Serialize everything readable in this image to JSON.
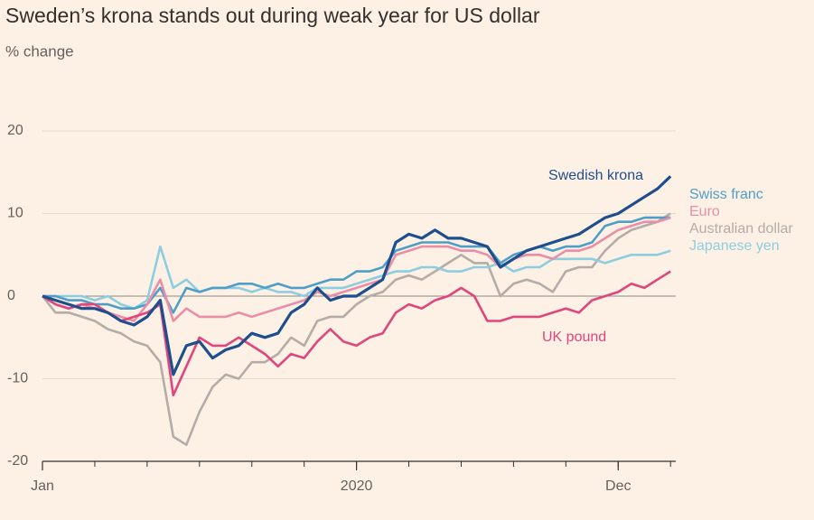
{
  "chart_data": {
    "type": "line",
    "title": "Sweden’s krona stands out during weak year for US dollar",
    "subtitle": "% change",
    "x": [
      0,
      0.25,
      0.5,
      0.75,
      1,
      1.25,
      1.5,
      1.75,
      2,
      2.25,
      2.5,
      2.75,
      3,
      3.25,
      3.5,
      3.75,
      4,
      4.25,
      4.5,
      4.75,
      5,
      5.25,
      5.5,
      5.75,
      6,
      6.25,
      6.5,
      6.75,
      7,
      7.25,
      7.5,
      7.75,
      8,
      8.25,
      8.5,
      8.75,
      9,
      9.25,
      9.5,
      9.75,
      10,
      10.25,
      10.5,
      10.75,
      11,
      11.25,
      11.5,
      11.75,
      12
    ],
    "xlim": [
      0,
      12.1
    ],
    "xticks": [
      {
        "value": 0,
        "label": "Jan"
      },
      {
        "value": 6,
        "label": "2020"
      },
      {
        "value": 11,
        "label": "Dec"
      }
    ],
    "ylim": [
      -20,
      20
    ],
    "yticks": [
      -20,
      -10,
      0,
      10,
      20
    ],
    "grid": true,
    "series": [
      {
        "name": "Swedish krona",
        "color": "#1f4e8c",
        "values": [
          0,
          -0.5,
          -1,
          -1.5,
          -1.5,
          -2,
          -3,
          -3.5,
          -2.5,
          -0.5,
          -9.5,
          -6,
          -5.5,
          -7.5,
          -6.5,
          -6,
          -4.5,
          -5,
          -4.5,
          -2,
          -1,
          1,
          -0.5,
          0,
          0,
          1,
          2,
          6.5,
          7.5,
          7,
          8,
          7,
          7,
          6.5,
          6,
          3.5,
          4.5,
          5.5,
          6,
          6.5,
          7,
          7.5,
          8.5,
          9.5,
          10,
          11,
          12,
          13,
          14.5
        ]
      },
      {
        "name": "Swiss franc",
        "color": "#4e9ec8",
        "values": [
          0,
          0,
          -0.5,
          -0.5,
          -1,
          -1,
          -1.5,
          -1.5,
          -1,
          1,
          -2,
          1,
          0.5,
          1,
          1,
          1.5,
          1.5,
          1,
          1.5,
          1,
          1,
          1.5,
          2,
          2,
          3,
          3,
          3.5,
          5.5,
          6,
          6.5,
          6.5,
          6.5,
          6,
          6,
          6,
          4,
          5,
          5.5,
          6,
          5.5,
          6,
          6,
          6.5,
          8.5,
          9,
          9,
          9.5,
          9.5,
          9.5
        ]
      },
      {
        "name": "Euro",
        "color": "#e98ea6",
        "values": [
          0,
          -1,
          -1.5,
          -1,
          -1.5,
          -2,
          -2.5,
          -3,
          -1,
          2,
          -3,
          -1.5,
          -2.5,
          -2.5,
          -2.5,
          -2,
          -2.5,
          -2,
          -1.5,
          -1,
          -0.5,
          0.5,
          0,
          0.5,
          1,
          1.5,
          2,
          5,
          5.5,
          6,
          6,
          6,
          5.5,
          5.5,
          5,
          3.5,
          4.5,
          5,
          5,
          4.5,
          5.5,
          5.5,
          6,
          7,
          8,
          8.5,
          9,
          9,
          9.5
        ]
      },
      {
        "name": "Australian dollar",
        "color": "#b3aca7",
        "values": [
          0,
          -2,
          -2,
          -2.5,
          -3,
          -4,
          -4.5,
          -5.5,
          -6,
          -8,
          -17,
          -18,
          -14,
          -11,
          -9.5,
          -10,
          -8,
          -8,
          -7,
          -5,
          -6,
          -3,
          -2.5,
          -2.5,
          -1,
          0,
          0.5,
          2,
          2.5,
          2,
          3,
          4,
          5,
          4,
          4,
          0,
          1.5,
          2,
          1.5,
          0.5,
          3,
          3.5,
          3.5,
          5.5,
          7,
          8,
          8.5,
          9,
          10
        ]
      },
      {
        "name": "Japanese yen",
        "color": "#8dcde0",
        "values": [
          0,
          0,
          0,
          0,
          -0.5,
          0,
          -1,
          -1.5,
          -0.5,
          6,
          1,
          2,
          0.5,
          1,
          1,
          1,
          0.5,
          1,
          0.5,
          0.5,
          0,
          1,
          1,
          1,
          1.5,
          2,
          2.5,
          3,
          3,
          3.5,
          3.5,
          3,
          3,
          3.5,
          3.5,
          4,
          3,
          3.5,
          3.5,
          4.5,
          4.5,
          4.5,
          4.5,
          4,
          4.5,
          5,
          5,
          5,
          5.5
        ]
      },
      {
        "name": "UK pound",
        "color": "#e0457b",
        "values": [
          0,
          -1,
          -1.5,
          -1,
          -1,
          -2,
          -3,
          -2.5,
          -2,
          -1,
          -12,
          -8.5,
          -5,
          -6,
          -6,
          -5,
          -6,
          -7,
          -8.5,
          -7,
          -7.5,
          -5.5,
          -4,
          -5.5,
          -6,
          -5,
          -4.5,
          -2,
          -1,
          -1.5,
          -0.5,
          0,
          1,
          0,
          -3,
          -3,
          -2.5,
          -2.5,
          -2.5,
          -2,
          -1.5,
          -2,
          -0.5,
          0,
          0.5,
          1.5,
          1,
          2,
          3
        ]
      }
    ]
  }
}
